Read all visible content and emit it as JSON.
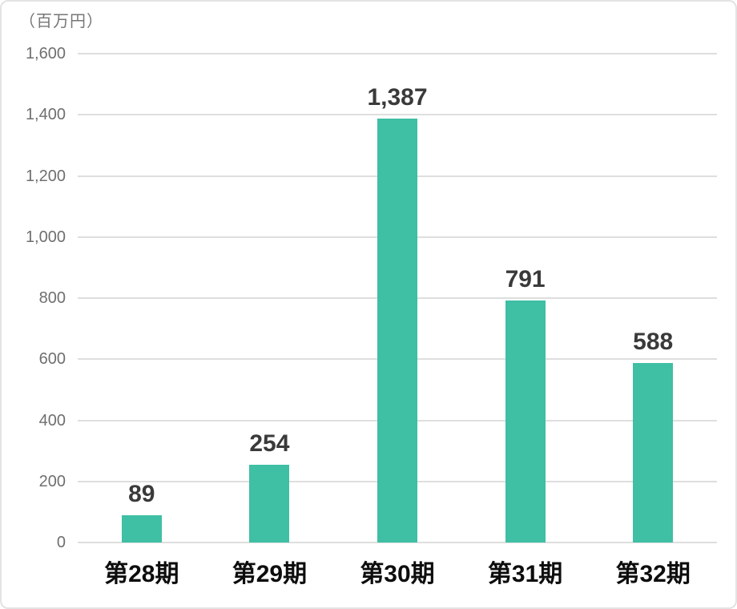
{
  "chart_data": {
    "type": "bar",
    "title": "",
    "unit_label": "（百万円）",
    "categories": [
      "第28期",
      "第29期",
      "第30期",
      "第31期",
      "第32期"
    ],
    "values": [
      89,
      254,
      1387,
      791,
      588
    ],
    "value_labels": [
      "89",
      "254",
      "1,387",
      "791",
      "588"
    ],
    "y_ticks": [
      0,
      200,
      400,
      600,
      800,
      1000,
      1200,
      1400,
      1600
    ],
    "y_tick_labels": [
      "0",
      "200",
      "400",
      "600",
      "800",
      "1,000",
      "1,200",
      "1,400",
      "1,600"
    ],
    "ylim": [
      0,
      1600
    ],
    "xlabel": "",
    "ylabel": "百万円",
    "grid": true,
    "legend": "none",
    "colors": {
      "bar": "#3fbfa4",
      "gridline": "#dedede",
      "tick_text": "#6f6f6f",
      "value_text": "#3a3a3a",
      "axis_text": "#0d0d0d",
      "card_border": "#e3e3e3",
      "background": "#ffffff"
    }
  }
}
